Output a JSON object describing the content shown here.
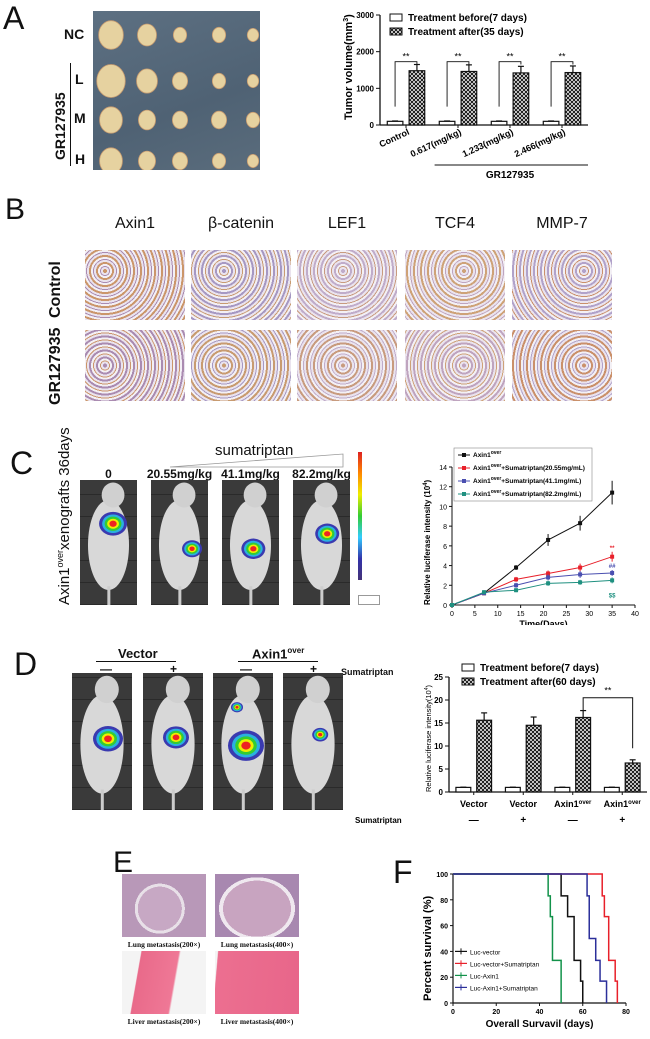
{
  "panels": {
    "A": {
      "label": "A",
      "photo": {
        "row_labels": [
          "NC",
          "L",
          "M",
          "H"
        ],
        "group_label": "GR127935"
      },
      "chart_data": {
        "type": "bar",
        "categories": [
          "Control",
          "0.617(mg/kg)",
          "1.233(mg/kg)",
          "2.466(mg/kg)"
        ],
        "group_label": "GR127935",
        "ylabel": "Tumor volume(mm3)",
        "ylim": [
          0,
          3000
        ],
        "yticks": [
          0,
          1000,
          2000,
          3000
        ],
        "series": [
          {
            "name": "Treatment before(7 days)",
            "pattern": "open",
            "values": [
              100,
              100,
              100,
              100
            ],
            "errors": [
              10,
              10,
              10,
              10
            ]
          },
          {
            "name": "Treatment after(35 days)",
            "pattern": "crosshatch",
            "values": [
              1480,
              1460,
              1420,
              1430
            ],
            "errors": [
              170,
              180,
              180,
              180
            ]
          }
        ],
        "annotations": [
          "**",
          "**",
          "**",
          "**"
        ],
        "legend": "top"
      }
    },
    "B": {
      "label": "B",
      "columns": [
        "Axin1",
        "β-catenin",
        "LEF1",
        "TCF4",
        "MMP-7"
      ],
      "rows": [
        "Control",
        "GR127935"
      ]
    },
    "C": {
      "label": "C",
      "row_label": "Axin1",
      "row_label_sup": "over",
      "row_label_suffix": "xenografts 36days",
      "treatment": "sumatriptan",
      "doses": [
        "0",
        "20.55mg/kg",
        "41.1mg/kg",
        "82.2mg/kg"
      ],
      "chart_data": {
        "type": "line",
        "xlabel": "Time(Days)",
        "ylabel": "Relative luciferase intensity (10",
        "ylabel_sup": "4",
        "xlim": [
          0,
          40
        ],
        "ylim": [
          0,
          14
        ],
        "xticks": [
          0,
          5,
          10,
          15,
          20,
          25,
          30,
          35,
          40
        ],
        "yticks": [
          0,
          2,
          4,
          6,
          8,
          10,
          12,
          14
        ],
        "legend": "top-left",
        "series": [
          {
            "name": "Axin1",
            "sup": "over",
            "suffix": "",
            "color": "#111111",
            "marker": "square",
            "x": [
              0,
              7,
              14,
              21,
              28,
              35
            ],
            "y": [
              0,
              1.2,
              3.8,
              6.6,
              8.3,
              11.4
            ],
            "err": [
              0,
              0.15,
              0.25,
              0.6,
              0.75,
              1.2
            ]
          },
          {
            "name": "Axin1",
            "sup": "over",
            "suffix": "+Sumatriptan(20.55mg/mL)",
            "color": "#e8202a",
            "marker": "circle",
            "x": [
              0,
              7,
              14,
              21,
              28,
              35
            ],
            "y": [
              0,
              1.2,
              2.6,
              3.2,
              3.8,
              4.9
            ],
            "err": [
              0,
              0.2,
              0.25,
              0.3,
              0.4,
              0.5
            ],
            "annotation": "**"
          },
          {
            "name": "Axin1",
            "sup": "over",
            "suffix": "+Sumatriptan(41.1mg/mL)",
            "color": "#4a4fb0",
            "marker": "triangle",
            "x": [
              0,
              7,
              14,
              21,
              28,
              35
            ],
            "y": [
              0,
              1.2,
              2.0,
              2.8,
              3.1,
              3.25
            ],
            "err": [
              0,
              0.2,
              0.25,
              0.3,
              0.35,
              0.3
            ],
            "annotation": "##"
          },
          {
            "name": "Axin1",
            "sup": "over",
            "suffix": "+Sumatriptan(82.2mg/mL)",
            "color": "#1f9080",
            "marker": "triangle-down",
            "x": [
              0,
              7,
              14,
              21,
              28,
              35
            ],
            "y": [
              0,
              1.3,
              1.5,
              2.2,
              2.3,
              2.5
            ],
            "err": [
              0,
              0.2,
              0.2,
              0.25,
              0.25,
              0.3
            ],
            "annotation": "$$"
          }
        ]
      }
    },
    "D": {
      "label": "D",
      "groups": [
        {
          "label": "Vector",
          "sup": ""
        },
        {
          "label": "Axin1",
          "sup": "over"
        }
      ],
      "signs": [
        "—",
        "+",
        "—",
        "+"
      ],
      "treatment": "Sumatriptan",
      "chart_data": {
        "type": "bar",
        "categories": [
          {
            "label": "Vector",
            "sup": ""
          },
          {
            "label": "Vector",
            "sup": ""
          },
          {
            "label": "Axin1",
            "sup": "over"
          },
          {
            "label": "Axin1",
            "sup": "over"
          }
        ],
        "row_label": "Sumatriptan",
        "row_signs": [
          "—",
          "+",
          "—",
          "+"
        ],
        "ylabel": "Relative luciferase intensity(10",
        "ylabel_sup": "4",
        "ylim": [
          0,
          25
        ],
        "yticks": [
          0,
          5,
          10,
          15,
          20,
          25
        ],
        "series": [
          {
            "name": "Treatment before(7 days)",
            "pattern": "open",
            "values": [
              1,
              1,
              1,
              1
            ],
            "errors": [
              0.05,
              0.05,
              0.05,
              0.05
            ]
          },
          {
            "name": "Treatment after(60 days)",
            "pattern": "crosshatch",
            "values": [
              15.6,
              14.5,
              16.2,
              6.3
            ],
            "errors": [
              1.6,
              1.8,
              1.5,
              0.7
            ]
          }
        ],
        "annotation": "**",
        "legend": "top"
      }
    },
    "E": {
      "label": "E",
      "captions": [
        "Lung metastasis(200×)",
        "Lung metastasis(400×)",
        "Liver metastasis(200×)",
        "Liver metastasis(400×)"
      ]
    },
    "F": {
      "label": "F",
      "chart_data": {
        "type": "line",
        "subtype": "kaplan-meier",
        "xlabel": "Overall Survavil (days)",
        "ylabel": "Percent survival (%)",
        "xlim": [
          0,
          80
        ],
        "ylim": [
          0,
          100
        ],
        "xticks": [
          0,
          20,
          40,
          60,
          80
        ],
        "yticks": [
          0,
          20,
          40,
          60,
          80,
          100
        ],
        "legend": "bottom-left",
        "series": [
          {
            "name": "Luc-vector",
            "color": "#111111",
            "steps": [
              [
                0,
                100
              ],
              [
                50,
                83
              ],
              [
                53,
                67
              ],
              [
                56,
                33
              ],
              [
                59,
                17
              ],
              [
                60,
                0
              ]
            ]
          },
          {
            "name": "Luc-vector+Sumatriptan",
            "color": "#e8202a",
            "steps": [
              [
                0,
                100
              ],
              [
                69,
                83
              ],
              [
                70,
                67
              ],
              [
                72,
                33
              ],
              [
                75,
                17
              ],
              [
                76,
                0
              ]
            ]
          },
          {
            "name": "Luc-Axin1",
            "color": "#12924a",
            "steps": [
              [
                0,
                100
              ],
              [
                44,
                83
              ],
              [
                45,
                67
              ],
              [
                46,
                33
              ],
              [
                50,
                0
              ]
            ]
          },
          {
            "name": "Luc-Axin1+Sumatriptan",
            "color": "#2b2f9a",
            "steps": [
              [
                0,
                100
              ],
              [
                62,
                83
              ],
              [
                63,
                50
              ],
              [
                66,
                33
              ],
              [
                68,
                17
              ],
              [
                71,
                0
              ]
            ]
          }
        ]
      }
    }
  }
}
